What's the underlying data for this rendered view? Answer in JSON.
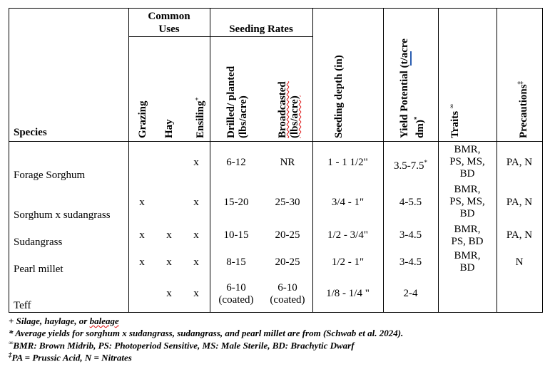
{
  "headers": {
    "species": "Species",
    "common_uses": [
      "Common",
      "Uses"
    ],
    "seeding_rates": "Seeding Rates",
    "grazing": "Grazing",
    "hay": "Hay",
    "ensiling": "Ensiling",
    "ensiling_mark": "+",
    "drilled": [
      "Drilled/ planted",
      "(lbs/acre)"
    ],
    "broadcasted": [
      "Broadcasted",
      "(lbs/acre)"
    ],
    "seeding_depth": "Seeding depth (in)",
    "yield": [
      "Yield Potential  (t/acre",
      "dm)"
    ],
    "yield_mark": "*",
    "traits": "Traits",
    "traits_mark": "∞",
    "precautions": "Precautions",
    "precautions_mark": "‡"
  },
  "rows": [
    {
      "species": "Forage Sorghum",
      "grazing": "",
      "hay": "",
      "ensiling": "x",
      "drilled": [
        "6-12"
      ],
      "broadcasted": [
        "NR"
      ],
      "depth": "1 - 1 1/2\"",
      "yield": "3.5-7.5",
      "yield_mark": "*",
      "traits": [
        "BMR,",
        "PS, MS,",
        "BD"
      ],
      "precautions": "PA, N"
    },
    {
      "species": "Sorghum x sudangrass",
      "grazing": "x",
      "hay": "",
      "ensiling": "x",
      "drilled": [
        "15-20"
      ],
      "broadcasted": [
        "25-30"
      ],
      "depth": "3/4 - 1\"",
      "yield": "4-5.5",
      "yield_mark": "",
      "traits": [
        "BMR,",
        "PS, MS,",
        "BD"
      ],
      "precautions": "PA, N"
    },
    {
      "species": "Sudangrass",
      "grazing": "x",
      "hay": "x",
      "ensiling": "x",
      "drilled": [
        "10-15"
      ],
      "broadcasted": [
        "20-25"
      ],
      "depth": "1/2 - 3/4\"",
      "yield": "3-4.5",
      "yield_mark": "",
      "traits": [
        "BMR,",
        "PS, BD"
      ],
      "precautions": "PA, N"
    },
    {
      "species": "Pearl millet",
      "grazing": "x",
      "hay": "x",
      "ensiling": "x",
      "drilled": [
        "8-15"
      ],
      "broadcasted": [
        "20-25"
      ],
      "depth": "1/2 - 1\"",
      "yield": "3-4.5",
      "yield_mark": "",
      "traits": [
        "BMR,",
        "BD"
      ],
      "precautions": "N"
    },
    {
      "species": "Teff",
      "grazing": "",
      "hay": "x",
      "ensiling": "x",
      "drilled": [
        "6-10",
        "(coated)"
      ],
      "broadcasted": [
        "6-10",
        "(coated)"
      ],
      "depth": "1/8 - 1/4 \"",
      "yield": "2-4",
      "yield_mark": "",
      "traits": [],
      "precautions": ""
    }
  ],
  "footnotes": {
    "silage_prefix": "+ Silage, haylage, or ",
    "silage_word": "baleage",
    "average": "* Average yields for sorghum x sudangrass, sudangrass, and pearl millet are from (Schwab et al. 2024).",
    "traits_mark": "∞",
    "traits": "BMR: Brown Midrib, PS: Photoperiod Sensitive, MS: Male Sterile, BD: Brachytic Dwarf",
    "prec_mark": "‡",
    "prec": "PA = Prussic Acid, N = Nitrates"
  }
}
